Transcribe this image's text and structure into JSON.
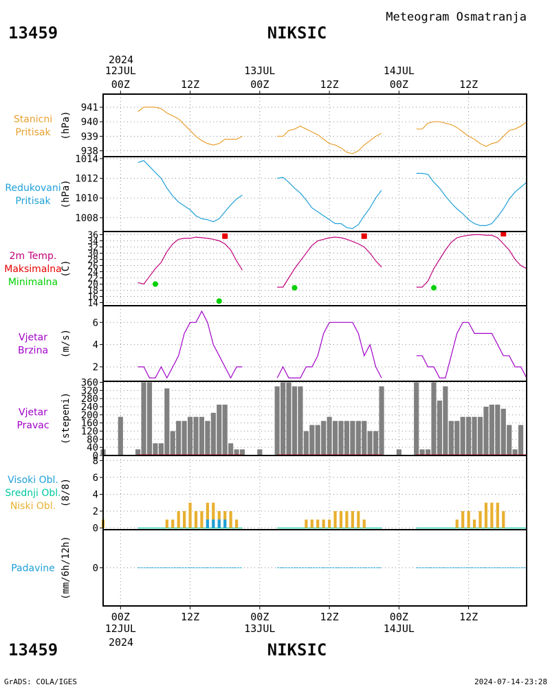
{
  "header": {
    "station_id": "13459",
    "station_name": "NIKSIC",
    "subtitle": "Meteogram Osmatranja"
  },
  "footer": {
    "station_id": "13459",
    "station_name": "NIKSIC",
    "credit": "GrADS: COLA/IGES",
    "timestamp": "2024-07-14-23:28"
  },
  "time_axis": {
    "year": "2024",
    "days": [
      "12JUL",
      "13JUL",
      "14JUL"
    ],
    "hour_labels": [
      "00Z",
      "12Z",
      "00Z",
      "12Z",
      "00Z",
      "12Z"
    ],
    "hour_label_hours": [
      0,
      12,
      24,
      36,
      48,
      60
    ],
    "start_hour": -3,
    "end_hour": 70
  },
  "colors": {
    "pressure": "#e8a030",
    "reduced": "#1ea0d8",
    "temperature": "#c0007a",
    "tmax": "#e80000",
    "tmin": "#00d000",
    "wind": "#a000c8",
    "direction_bar": "#808080",
    "high_cloud": "#1ea0d8",
    "mid_cloud": "#00c8a0",
    "low_cloud": "#e8b030",
    "precip": "#1ea0d8"
  },
  "chart_data": [
    {
      "type": "line",
      "id": "station_pressure",
      "labels": [
        "Stanicni",
        "Pritisak"
      ],
      "unit": "(hPa)",
      "ylim": [
        937.6,
        941.9
      ],
      "yticks": [
        938,
        939,
        940,
        941
      ],
      "segments": [
        {
          "x": [
            3,
            4,
            5,
            6,
            7,
            8,
            9,
            10,
            11,
            12,
            13,
            14,
            15,
            16,
            17,
            18,
            19,
            20,
            21
          ],
          "y": [
            940.7,
            941.0,
            941.0,
            941.0,
            940.9,
            940.6,
            940.4,
            940.2,
            939.8,
            939.4,
            939.0,
            938.7,
            938.5,
            938.4,
            938.5,
            938.8,
            938.8,
            938.8,
            939.0
          ]
        },
        {
          "x": [
            27,
            28,
            29,
            30,
            31,
            32,
            33,
            34,
            35,
            36,
            37,
            38,
            39,
            40,
            41,
            42,
            43,
            44,
            45
          ],
          "y": [
            939.0,
            939.0,
            939.4,
            939.5,
            939.7,
            939.5,
            939.3,
            939.1,
            938.8,
            938.5,
            938.4,
            938.2,
            937.9,
            937.8,
            938.0,
            938.4,
            938.7,
            939.0,
            939.2
          ]
        },
        {
          "x": [
            51,
            52,
            53,
            54,
            55,
            56,
            57,
            58,
            59,
            60,
            61,
            62,
            63,
            64,
            65,
            66,
            67,
            68,
            69,
            70
          ],
          "y": [
            939.5,
            939.5,
            939.9,
            940.0,
            940.0,
            939.9,
            939.8,
            939.6,
            939.3,
            939.0,
            938.8,
            938.5,
            938.3,
            938.5,
            938.6,
            939.0,
            939.4,
            939.5,
            939.7,
            940.0
          ]
        }
      ]
    },
    {
      "type": "line",
      "id": "reduced_pressure",
      "labels": [
        "Redukovani",
        "Pritisak"
      ],
      "unit": "(hPa)",
      "ylim": [
        1006.6,
        1014.2
      ],
      "yticks": [
        1008,
        1010,
        1012,
        1014
      ],
      "segments": [
        {
          "x": [
            3,
            4,
            5,
            6,
            7,
            8,
            9,
            10,
            11,
            12,
            13,
            14,
            15,
            16,
            17,
            18,
            19,
            20,
            21
          ],
          "y": [
            1013.6,
            1013.8,
            1013.2,
            1012.6,
            1012.0,
            1011.0,
            1010.2,
            1009.6,
            1009.2,
            1008.8,
            1008.2,
            1007.9,
            1007.8,
            1007.6,
            1007.9,
            1008.6,
            1009.3,
            1009.9,
            1010.3
          ]
        },
        {
          "x": [
            27,
            28,
            29,
            30,
            31,
            32,
            33,
            34,
            35,
            36,
            37,
            38,
            39,
            40,
            41,
            42,
            43,
            44,
            45
          ],
          "y": [
            1012.0,
            1012.1,
            1011.6,
            1011.0,
            1010.5,
            1009.8,
            1009.0,
            1008.6,
            1008.2,
            1007.8,
            1007.4,
            1007.4,
            1007.0,
            1006.9,
            1007.3,
            1008.2,
            1009.0,
            1010.0,
            1010.8
          ]
        },
        {
          "x": [
            51,
            52,
            53,
            54,
            55,
            56,
            57,
            58,
            59,
            60,
            61,
            62,
            63,
            64,
            65,
            66,
            67,
            68,
            69,
            70
          ],
          "y": [
            1012.5,
            1012.5,
            1012.4,
            1011.6,
            1011.0,
            1010.2,
            1009.5,
            1008.9,
            1008.4,
            1007.8,
            1007.4,
            1007.2,
            1007.2,
            1007.4,
            1008.1,
            1008.9,
            1009.9,
            1010.6,
            1011.1,
            1011.6
          ]
        }
      ]
    },
    {
      "type": "line",
      "id": "temperature",
      "labels": [
        "2m Temp.",
        "Maksimalna",
        "Minimalna"
      ],
      "unit": "(C)",
      "ylim": [
        13,
        37
      ],
      "yticks": [
        14,
        16,
        18,
        20,
        22,
        24,
        26,
        28,
        30,
        32,
        34,
        36
      ],
      "segments": [
        {
          "x": [
            3,
            4,
            5,
            6,
            7,
            8,
            9,
            10,
            11,
            12,
            13,
            14,
            15,
            16,
            17,
            18,
            19,
            20,
            21
          ],
          "y": [
            20.5,
            20.0,
            22.5,
            25.0,
            27.0,
            30.5,
            33.0,
            34.5,
            34.8,
            34.8,
            35.2,
            35.0,
            34.8,
            34.5,
            34.0,
            33.0,
            31.0,
            27.5,
            24.5
          ]
        },
        {
          "x": [
            27,
            28,
            29,
            30,
            31,
            32,
            33,
            34,
            35,
            36,
            37,
            38,
            39,
            40,
            41,
            42,
            43,
            44,
            45
          ],
          "y": [
            19.0,
            19.0,
            22.0,
            25.0,
            27.5,
            30.0,
            32.5,
            34.0,
            34.5,
            35.0,
            35.2,
            35.0,
            34.5,
            33.8,
            33.0,
            32.0,
            30.0,
            27.5,
            25.5
          ]
        },
        {
          "x": [
            51,
            52,
            53,
            54,
            55,
            56,
            57,
            58,
            59,
            60,
            61,
            62,
            63,
            64,
            65,
            66,
            67,
            68,
            69,
            70
          ],
          "y": [
            19.0,
            19.0,
            21.0,
            25.0,
            28.0,
            31.0,
            33.5,
            35.0,
            35.5,
            35.8,
            36.0,
            36.0,
            35.8,
            35.8,
            35.0,
            33.0,
            31.0,
            28.0,
            26.0,
            25.0
          ]
        }
      ],
      "tmax": [
        {
          "x": 18,
          "y": 35.5
        },
        {
          "x": 42,
          "y": 35.5
        },
        {
          "x": 66,
          "y": 36.3
        }
      ],
      "tmin": [
        {
          "x": 6,
          "y": 20.0
        },
        {
          "x": 17,
          "y": 14.5
        },
        {
          "x": 30,
          "y": 18.8
        },
        {
          "x": 54,
          "y": 18.8
        }
      ]
    },
    {
      "type": "line",
      "id": "wind_speed",
      "labels": [
        "Vjetar",
        "Brzina"
      ],
      "unit": "(m/s)",
      "ylim": [
        0.7,
        7.5
      ],
      "yticks": [
        2,
        4,
        6
      ],
      "segments": [
        {
          "x": [
            3,
            4,
            5,
            6,
            7,
            8,
            9,
            10,
            11,
            12,
            13,
            14,
            15,
            16,
            17,
            18,
            19,
            20,
            21
          ],
          "y": [
            2,
            2,
            1,
            1,
            2,
            1,
            2,
            3,
            5,
            6,
            6,
            7,
            6,
            4,
            3,
            2,
            1,
            2,
            2
          ]
        },
        {
          "x": [
            27,
            28,
            29,
            30,
            31,
            32,
            33,
            34,
            35,
            36,
            37,
            38,
            39,
            40,
            41,
            42,
            43,
            44,
            45
          ],
          "y": [
            1,
            2,
            1,
            1,
            1,
            2,
            2,
            3,
            5,
            6,
            6,
            6,
            6,
            6,
            5,
            3,
            4,
            2,
            1
          ]
        },
        {
          "x": [
            51,
            52,
            53,
            54,
            55,
            56,
            57,
            58,
            59,
            60,
            61,
            62,
            63,
            64,
            65,
            66,
            67,
            68,
            69,
            70
          ],
          "y": [
            3,
            3,
            2,
            2,
            1,
            1,
            3,
            5,
            6,
            6,
            5,
            5,
            5,
            5,
            4,
            3,
            3,
            2,
            2,
            1
          ]
        }
      ]
    },
    {
      "type": "bar",
      "id": "wind_direction",
      "labels": [
        "Vjetar",
        "Pravac"
      ],
      "unit": "(stepeni)",
      "ylim": [
        0,
        365
      ],
      "yticks": [
        0,
        40,
        80,
        120,
        160,
        200,
        240,
        280,
        320,
        360
      ],
      "x": [
        -3,
        0,
        3,
        4,
        5,
        6,
        7,
        8,
        9,
        10,
        11,
        12,
        13,
        14,
        15,
        16,
        17,
        18,
        19,
        20,
        21,
        24,
        27,
        28,
        29,
        30,
        31,
        32,
        33,
        34,
        35,
        36,
        37,
        38,
        39,
        40,
        41,
        42,
        43,
        44,
        45,
        48,
        51,
        52,
        53,
        54,
        55,
        56,
        57,
        58,
        59,
        60,
        61,
        62,
        63,
        64,
        65,
        66,
        67,
        68,
        69,
        70
      ],
      "values": [
        30,
        190,
        30,
        360,
        360,
        60,
        60,
        330,
        120,
        170,
        170,
        190,
        190,
        190,
        170,
        210,
        250,
        250,
        60,
        30,
        30,
        30,
        340,
        360,
        360,
        340,
        340,
        120,
        150,
        150,
        170,
        190,
        170,
        170,
        170,
        170,
        170,
        170,
        120,
        120,
        340,
        30,
        360,
        30,
        30,
        360,
        270,
        340,
        170,
        170,
        190,
        190,
        190,
        190,
        240,
        250,
        250,
        230,
        150,
        30,
        150,
        0
      ]
    },
    {
      "type": "bar",
      "id": "clouds",
      "labels": [
        "Visoki Obl.",
        "Srednji Obl.",
        "Niski Obl."
      ],
      "unit": "(8/8)",
      "ylim": [
        -0.2,
        8.6
      ],
      "yticks": [
        0,
        2,
        4,
        6,
        8
      ],
      "low": {
        "x": [
          -3,
          8,
          9,
          10,
          11,
          12,
          13,
          14,
          15,
          16,
          17,
          18,
          19,
          20,
          32,
          33,
          34,
          35,
          36,
          37,
          38,
          39,
          40,
          41,
          42,
          58,
          59,
          60,
          61,
          62,
          63,
          64,
          65,
          66
        ],
        "values": [
          1,
          1,
          1,
          2,
          2,
          3,
          2,
          2,
          3,
          3,
          2,
          2,
          2,
          1,
          1,
          1,
          1,
          1,
          1,
          2,
          2,
          2,
          2,
          2,
          1,
          1,
          2,
          2,
          1,
          2,
          3,
          3,
          3,
          2
        ]
      },
      "high": {
        "x": [
          15,
          16,
          17,
          18
        ],
        "values": [
          1,
          1,
          1,
          1
        ]
      }
    },
    {
      "type": "bar",
      "id": "precipitation",
      "labels": [
        "Padavine"
      ],
      "unit": "(mm/6h/12h)",
      "ylim": [
        -4,
        4
      ],
      "yticks": [
        0
      ],
      "x": [],
      "values": []
    }
  ]
}
